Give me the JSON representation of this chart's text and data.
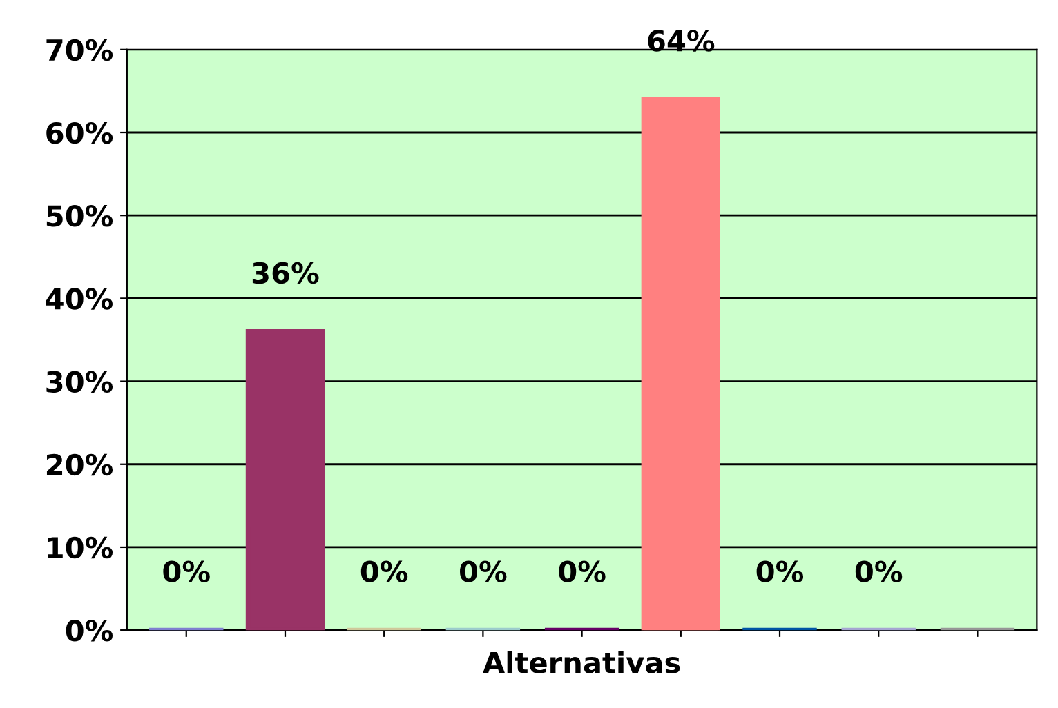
{
  "chart_data": {
    "type": "bar",
    "xlabel": "Alternativas",
    "categories": [
      null,
      null,
      null,
      null,
      null,
      null,
      null,
      null,
      null
    ],
    "values": [
      0,
      36,
      0,
      0,
      0,
      64,
      0,
      0,
      0
    ],
    "value_labels": [
      "0%",
      "36%",
      "0%",
      "0%",
      "0%",
      "64%",
      "0%",
      "0%",
      null
    ],
    "colors": [
      "#7f7fd0",
      "#993366",
      "#cfc89a",
      "#9ccccc",
      "#660066",
      "#ff8080",
      "#0055a5",
      "#a5a5d2",
      "#969696"
    ],
    "ylim": [
      0,
      70
    ],
    "yticks": [
      {
        "value": 0,
        "label": "0%"
      },
      {
        "value": 10,
        "label": "10%"
      },
      {
        "value": 20,
        "label": "20%"
      },
      {
        "value": 30,
        "label": "30%"
      },
      {
        "value": 40,
        "label": "40%"
      },
      {
        "value": 50,
        "label": "50%"
      },
      {
        "value": 60,
        "label": "60%"
      },
      {
        "value": 70,
        "label": "70%"
      }
    ],
    "grid": "y",
    "legend": false
  }
}
